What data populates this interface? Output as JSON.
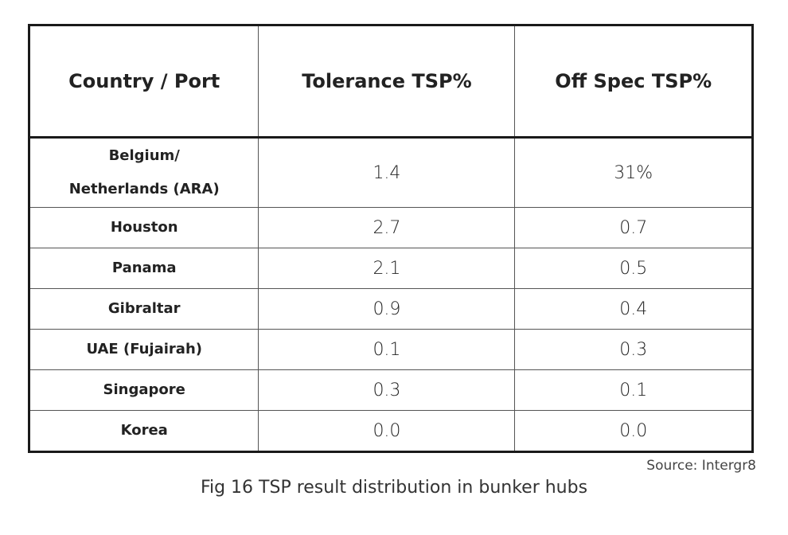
{
  "table": {
    "headers": [
      "Country / Port",
      "Tolerance TSP%",
      "Off Spec TSP%"
    ],
    "rows": [
      [
        "Belgium/\nNetherlands (ARA)",
        "1.4",
        "31%"
      ],
      [
        "Houston",
        "2.7",
        "0.7"
      ],
      [
        "Panama",
        "2.1",
        "0.5"
      ],
      [
        "Gibraltar",
        "0.9",
        "0.4"
      ],
      [
        "UAE (Fujairah)",
        "0.1",
        "0.3"
      ],
      [
        "Singapore",
        "0.3",
        "0.1"
      ],
      [
        "Korea",
        "0.0",
        "0.0"
      ]
    ]
  },
  "source": "Source: Intergr8",
  "caption": "Fig 16 TSP result distribution in bunker hubs"
}
